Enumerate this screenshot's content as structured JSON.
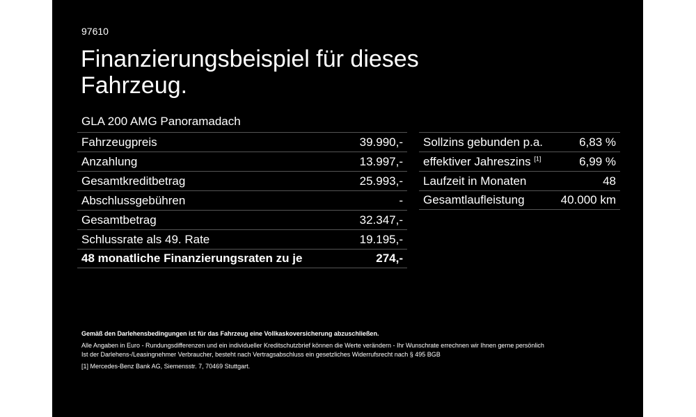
{
  "code": "97610",
  "title": "Finanzierungsbeispiel für dieses Fahrzeug.",
  "model": "GLA 200 AMG Panoramadach",
  "left_table": [
    {
      "label": "Fahrzeugpreis",
      "value": "39.990,-"
    },
    {
      "label": "Anzahlung",
      "value": "13.997,-"
    },
    {
      "label": "Gesamtkreditbetrag",
      "value": "25.993,-"
    },
    {
      "label": "Abschlussgebühren",
      "value": "-"
    },
    {
      "label": "Gesamtbetrag",
      "value": "32.347,-"
    },
    {
      "label": "Schlussrate als 49. Rate",
      "value": "19.195,-"
    },
    {
      "label": "48 monatliche Finanzierungsraten zu je",
      "value": "274,-"
    }
  ],
  "right_table": [
    {
      "label": "Sollzins gebunden p.a.",
      "value": "6,83 %"
    },
    {
      "label": "effektiver Jahreszins",
      "sup": "[1]",
      "value": "6,99 %"
    },
    {
      "label": "Laufzeit in Monaten",
      "value": "48"
    },
    {
      "label": "Gesamtlaufleistung",
      "value": "40.000 km"
    }
  ],
  "notes": {
    "insurance": "Gemäß den Darlehensbedingungen ist für das Fahrzeug eine Vollkaskoversicherung abzuschließen.",
    "line1": "Alle Angaben in Euro - Rundungsdifferenzen und ein individueller Kreditschutzbrief können die Werte verändern - Ihr Wunschrate errechnen wir Ihnen gerne persönlich",
    "line2": "Ist der Darlehens-/Leasingnehmer Verbraucher, besteht nach Vertragsabschluss ein gesetzliches Widerrufsrecht nach § 495 BGB",
    "footnote_marker": "[1]",
    "footnote": "Mercedes-Benz Bank AG, Siemensstr. 7, 70469 Stuttgart."
  }
}
